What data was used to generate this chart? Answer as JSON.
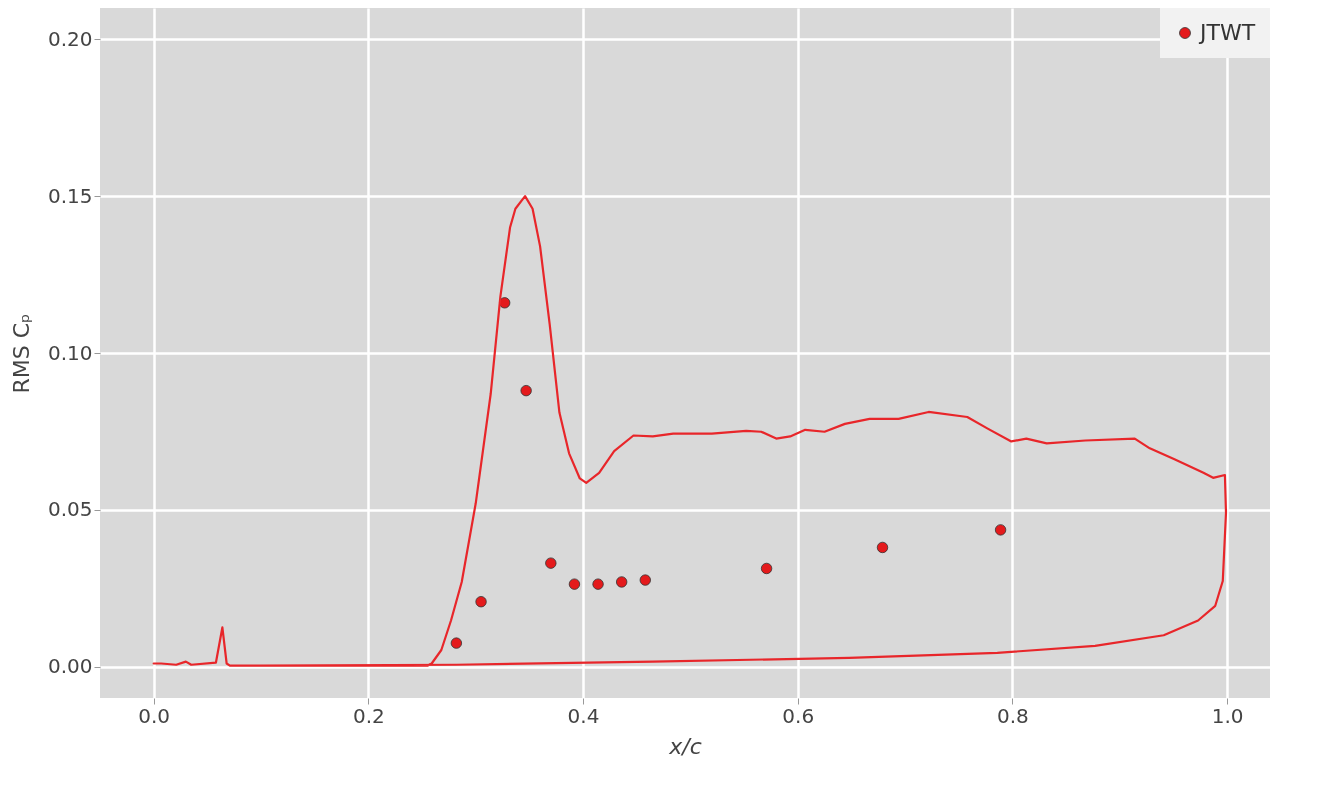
{
  "chart_data": {
    "type": "line",
    "xlabel": "x/c",
    "ylabel": "RMS Cₚ",
    "xlim": [
      -0.05,
      1.04
    ],
    "ylim": [
      -0.01,
      0.21
    ],
    "xticks": [
      {
        "value": 0,
        "label": "0.0"
      },
      {
        "value": 0.2,
        "label": "0.2"
      },
      {
        "value": 0.4,
        "label": "0.4"
      },
      {
        "value": 0.6,
        "label": "0.6"
      },
      {
        "value": 0.8,
        "label": "0.8"
      },
      {
        "value": 1,
        "label": "1.0"
      }
    ],
    "yticks": [
      {
        "value": 0,
        "label": "0.00"
      },
      {
        "value": 0.05,
        "label": "0.05"
      },
      {
        "value": 0.1,
        "label": "0.10"
      },
      {
        "value": 0.15,
        "label": "0.15"
      },
      {
        "value": 0.2,
        "label": "0.20"
      }
    ],
    "grid": true,
    "legend": "top right",
    "series": [
      {
        "type": "scatter",
        "marker": "circle",
        "name": "JTWT",
        "color": "#e41a1c",
        "x": [
          0.282,
          0.305,
          0.327,
          0.347,
          0.37,
          0.392,
          0.414,
          0.436,
          0.458,
          0.571,
          0.679,
          0.789
        ],
        "values": [
          0.0075,
          0.0207,
          0.116,
          0.088,
          0.033,
          0.0263,
          0.0263,
          0.027,
          0.0276,
          0.0313,
          0.038,
          0.0436
        ]
      },
      {
        "color": "#e8262a",
        "x": [
          0,
          0.007,
          0.021,
          0.03,
          0.035,
          0.058,
          0.064,
          0.068,
          0.071,
          0.255,
          0.259,
          0.268,
          0.277,
          0.287,
          0.3,
          0.314,
          0.323,
          0.332,
          0.337,
          0.346,
          0.353,
          0.36,
          0.369,
          0.378,
          0.387,
          0.397,
          0.403,
          0.415,
          0.429,
          0.447,
          0.465,
          0.484,
          0.52,
          0.552,
          0.566,
          0.58,
          0.593,
          0.607,
          0.625,
          0.644,
          0.667,
          0.694,
          0.722,
          0.758,
          0.777,
          0.799,
          0.813,
          0.832,
          0.868,
          0.914,
          0.928,
          0.951,
          0.978,
          0.987,
          0.998,
          0.999,
          0.996,
          0.989,
          0.973,
          0.941,
          0.877,
          0.786,
          0.648,
          0.465,
          0.282,
          0.099
        ],
        "values": [
          0.001,
          0.001,
          0.0006,
          0.0016,
          0.0006,
          0.0013,
          0.0125,
          0.001,
          0.0003,
          0.0003,
          0.001,
          0.0053,
          0.0147,
          0.027,
          0.052,
          0.087,
          0.118,
          0.14,
          0.146,
          0.15,
          0.146,
          0.134,
          0.109,
          0.081,
          0.068,
          0.06,
          0.0586,
          0.0618,
          0.0687,
          0.0737,
          0.0734,
          0.0743,
          0.0743,
          0.0752,
          0.0749,
          0.0727,
          0.0734,
          0.0755,
          0.0749,
          0.0774,
          0.079,
          0.079,
          0.0812,
          0.0796,
          0.0759,
          0.0718,
          0.0727,
          0.0712,
          0.0721,
          0.0727,
          0.0696,
          0.0661,
          0.0618,
          0.0602,
          0.0611,
          0.049,
          0.0273,
          0.0194,
          0.0147,
          0.01,
          0.0066,
          0.0044,
          0.0028,
          0.0016,
          0.0006,
          0.0003
        ]
      }
    ]
  }
}
